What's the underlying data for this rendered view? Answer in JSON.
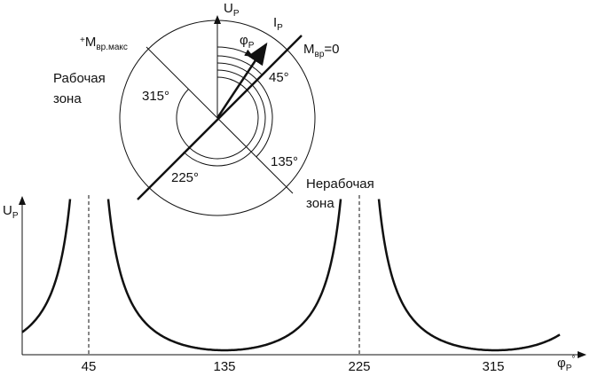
{
  "diagram": {
    "up_label": {
      "main": "U",
      "sub": "Р"
    },
    "ip_label": {
      "main": "I",
      "sub": "Р"
    },
    "phi_label": {
      "main": "φ",
      "sub": "Р"
    },
    "m0_label": {
      "main": "M",
      "sub": "вр",
      "suffix": "=0"
    },
    "mmax_label": {
      "prefix": "+",
      "main": "M",
      "sub": "вр.макс"
    },
    "angle_labels": [
      "45°",
      "135°",
      "225°",
      "315°"
    ],
    "work_zone": [
      "Рабочая",
      "зона"
    ],
    "nonwork_zone": [
      "Нерабочая",
      "зона"
    ],
    "graph": {
      "y_label": {
        "main": "U",
        "sub": "Р"
      },
      "x_label": {
        "main": "φ",
        "sub": "Р",
        "sup": "°"
      },
      "x_ticks": [
        "45",
        "135",
        "225",
        "315"
      ]
    }
  }
}
